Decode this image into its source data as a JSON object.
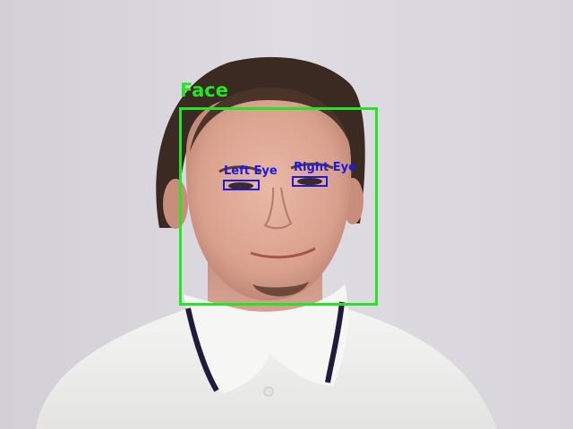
{
  "annotations": {
    "face": {
      "label": "Face",
      "color": "#22e622"
    },
    "left_eye": {
      "label": "Left Eye",
      "color": "#1a1ae0"
    },
    "right_eye": {
      "label": "Right Eye",
      "color": "#1a1ae0"
    }
  }
}
